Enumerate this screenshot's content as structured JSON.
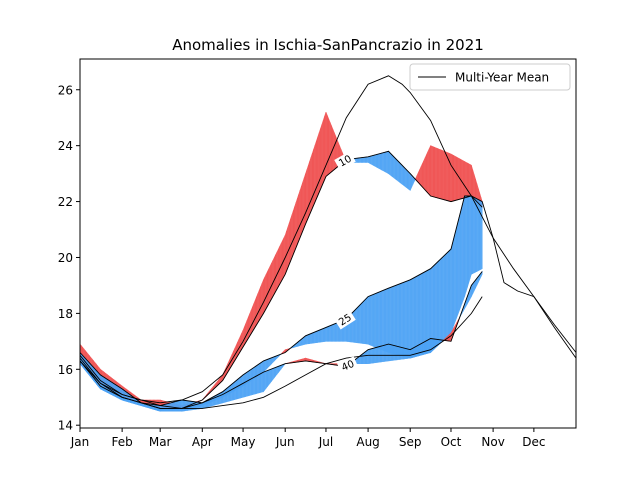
{
  "chart_data": {
    "type": "line",
    "title": "Anomalies in Ischia-SanPancrazio in 2021",
    "xlabel": "",
    "ylabel": "",
    "x_ticks": [
      "Jan",
      "Feb",
      "Mar",
      "Apr",
      "May",
      "Jun",
      "Jul",
      "Aug",
      "Sep",
      "Oct",
      "Nov",
      "Dec"
    ],
    "x_tick_days": [
      0,
      31,
      59,
      90,
      120,
      151,
      181,
      212,
      243,
      273,
      304,
      334
    ],
    "xlim": [
      0,
      365
    ],
    "ylim": [
      13.9,
      27.1
    ],
    "y_ticks": [
      14,
      16,
      18,
      20,
      22,
      24,
      26
    ],
    "grid": false,
    "legend": {
      "position": "top-right",
      "entries": [
        "Multi-Year Mean"
      ]
    },
    "colors": {
      "above": "#f05050",
      "below": "#4da3f5",
      "mean": "#000000"
    },
    "contour_labels": [
      "10",
      "25",
      "40"
    ],
    "series": [
      {
        "name": "Multi-Year Mean",
        "x": [
          0,
          15,
          31,
          45,
          59,
          75,
          90,
          105,
          120,
          135,
          151,
          166,
          181,
          196,
          212,
          227,
          237,
          243,
          258,
          273,
          288,
          304,
          319,
          334,
          349,
          365
        ],
        "y": [
          16.3,
          15.5,
          15.1,
          14.9,
          14.8,
          14.9,
          15.2,
          15.8,
          17.0,
          18.4,
          20.0,
          21.6,
          23.3,
          25.0,
          26.2,
          26.5,
          26.2,
          25.9,
          24.9,
          23.3,
          22.2,
          20.7,
          19.6,
          18.6,
          17.6,
          16.6
        ]
      },
      {
        "name": "",
        "x": [
          0,
          15,
          31,
          45,
          59,
          75,
          90,
          105,
          120,
          135,
          151,
          166,
          181,
          196,
          212,
          227,
          243,
          258,
          273,
          288,
          296
        ],
        "y": [
          16.4,
          15.5,
          15.0,
          14.8,
          14.6,
          14.6,
          14.9,
          15.6,
          16.8,
          18.0,
          19.4,
          21.2,
          22.9,
          23.5,
          23.6,
          23.8,
          23.0,
          22.2,
          22.0,
          22.2,
          21.8
        ]
      },
      {
        "name": "",
        "x": [
          0,
          15,
          31,
          45,
          59,
          75,
          90,
          105,
          120,
          135,
          151,
          166,
          181,
          196,
          212,
          227,
          243,
          258,
          273,
          288,
          296
        ],
        "y": [
          16.9,
          16.0,
          15.4,
          14.9,
          14.9,
          14.7,
          14.9,
          15.8,
          17.4,
          19.2,
          20.8,
          23.0,
          25.2,
          23.4,
          23.4,
          23.0,
          22.4,
          24.0,
          23.7,
          23.3,
          22.0
        ]
      },
      {
        "name": "",
        "x": [
          0,
          15,
          31,
          45,
          59,
          75,
          90,
          105,
          120,
          135,
          151,
          166,
          181,
          196,
          212,
          227,
          243,
          258,
          273,
          283,
          288,
          296,
          304,
          312,
          322,
          334,
          349,
          365
        ],
        "y": [
          16.3,
          15.4,
          15.0,
          14.8,
          14.6,
          14.6,
          14.8,
          15.2,
          15.8,
          16.3,
          16.6,
          17.2,
          17.5,
          17.8,
          18.6,
          18.9,
          19.2,
          19.6,
          20.3,
          22.2,
          22.2,
          22.0,
          20.7,
          19.1,
          18.8,
          18.6,
          17.5,
          16.4
        ]
      },
      {
        "name": "",
        "x": [
          0,
          15,
          31,
          45,
          59,
          75,
          90,
          105,
          120,
          135,
          151,
          166,
          181,
          196,
          212,
          227,
          243,
          258,
          273,
          283,
          288,
          296
        ],
        "y": [
          16.2,
          15.3,
          14.9,
          14.7,
          14.5,
          14.5,
          14.7,
          15.0,
          15.4,
          15.9,
          16.7,
          16.9,
          17.0,
          17.0,
          16.9,
          16.6,
          16.4,
          16.6,
          17.3,
          18.6,
          19.4,
          19.6
        ]
      },
      {
        "name": "",
        "x": [
          0,
          15,
          31,
          45,
          59,
          75,
          90,
          105,
          120,
          135,
          151,
          166,
          181,
          196,
          212,
          227,
          243,
          258,
          273,
          288,
          296
        ],
        "y": [
          16.6,
          15.8,
          15.3,
          14.8,
          14.7,
          14.9,
          14.8,
          15.1,
          15.5,
          15.9,
          16.2,
          16.3,
          16.2,
          16.1,
          16.7,
          16.9,
          16.7,
          17.1,
          17.0,
          19.0,
          19.5
        ]
      },
      {
        "name": "",
        "x": [
          0,
          15,
          31,
          45,
          59,
          75,
          90,
          105,
          120,
          135,
          151,
          166,
          181,
          196,
          212,
          227,
          243,
          258,
          273,
          288,
          296
        ],
        "y": [
          16.2,
          15.3,
          14.9,
          14.7,
          14.5,
          14.5,
          14.6,
          14.8,
          15.0,
          15.2,
          16.2,
          16.4,
          16.2,
          16.2,
          16.2,
          16.3,
          16.4,
          16.6,
          17.3,
          18.6,
          19.4
        ]
      },
      {
        "name": "",
        "x": [
          0,
          15,
          31,
          45,
          59,
          75,
          90,
          105,
          120,
          135,
          151,
          166,
          181,
          196,
          212,
          227,
          243,
          258,
          273,
          288,
          296
        ],
        "y": [
          16.5,
          15.6,
          15.1,
          14.9,
          14.7,
          14.6,
          14.6,
          14.7,
          14.8,
          15.0,
          15.4,
          15.8,
          16.2,
          16.4,
          16.5,
          16.5,
          16.5,
          16.7,
          17.2,
          18.0,
          18.6
        ]
      }
    ]
  }
}
